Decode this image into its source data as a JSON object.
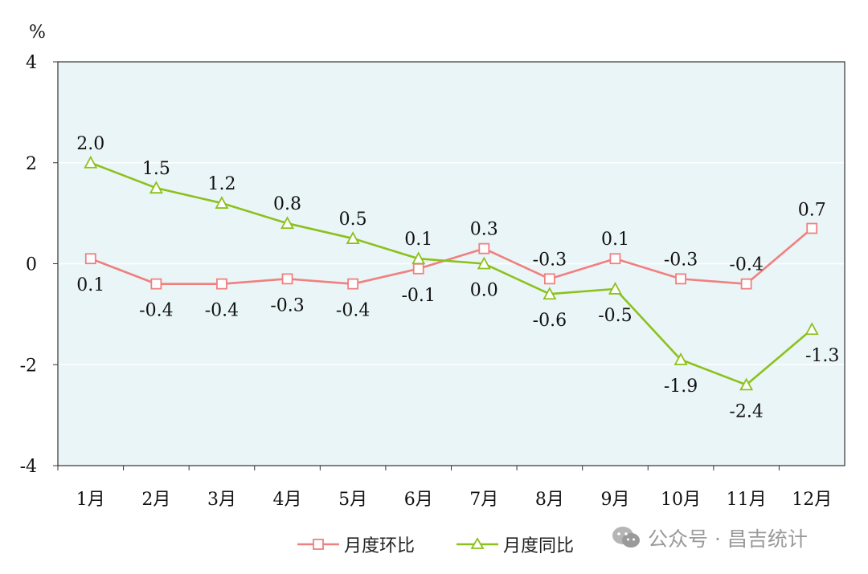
{
  "chart_data": {
    "type": "line",
    "ylabel": "%",
    "ylim": [
      -4,
      4
    ],
    "yticks": [
      -4,
      -2,
      0,
      2,
      4
    ],
    "categories": [
      "1月",
      "2月",
      "3月",
      "4月",
      "5月",
      "6月",
      "7月",
      "8月",
      "9月",
      "10月",
      "11月",
      "12月"
    ],
    "grid": true,
    "legend_position": "bottom",
    "series": [
      {
        "name": "月度环比",
        "color": "#f08080",
        "marker": "square",
        "values": [
          0.1,
          -0.4,
          -0.4,
          -0.3,
          -0.4,
          -0.1,
          0.3,
          -0.3,
          0.1,
          -0.3,
          -0.4,
          0.7
        ],
        "labels": [
          "0.1",
          "-0.4",
          "-0.4",
          "-0.3",
          "-0.4",
          "-0.1",
          "0.3",
          "-0.3",
          "0.1",
          "-0.3",
          "-0.4",
          "0.7"
        ]
      },
      {
        "name": "月度同比",
        "color": "#8cc11c",
        "marker": "triangle",
        "values": [
          2.0,
          1.5,
          1.2,
          0.8,
          0.5,
          0.1,
          0.0,
          -0.6,
          -0.5,
          -1.9,
          -2.4,
          -1.3
        ],
        "labels": [
          "2.0",
          "1.5",
          "1.2",
          "0.8",
          "0.5",
          "0.1",
          "0.0",
          "-0.6",
          "-0.5",
          "-1.9",
          "-2.4",
          "-1.3"
        ]
      }
    ]
  },
  "legend": {
    "items": [
      "月度环比",
      "月度同比"
    ]
  },
  "watermark": {
    "text": "公众号 · 昌吉统计",
    "icon": "wechat-icon"
  }
}
